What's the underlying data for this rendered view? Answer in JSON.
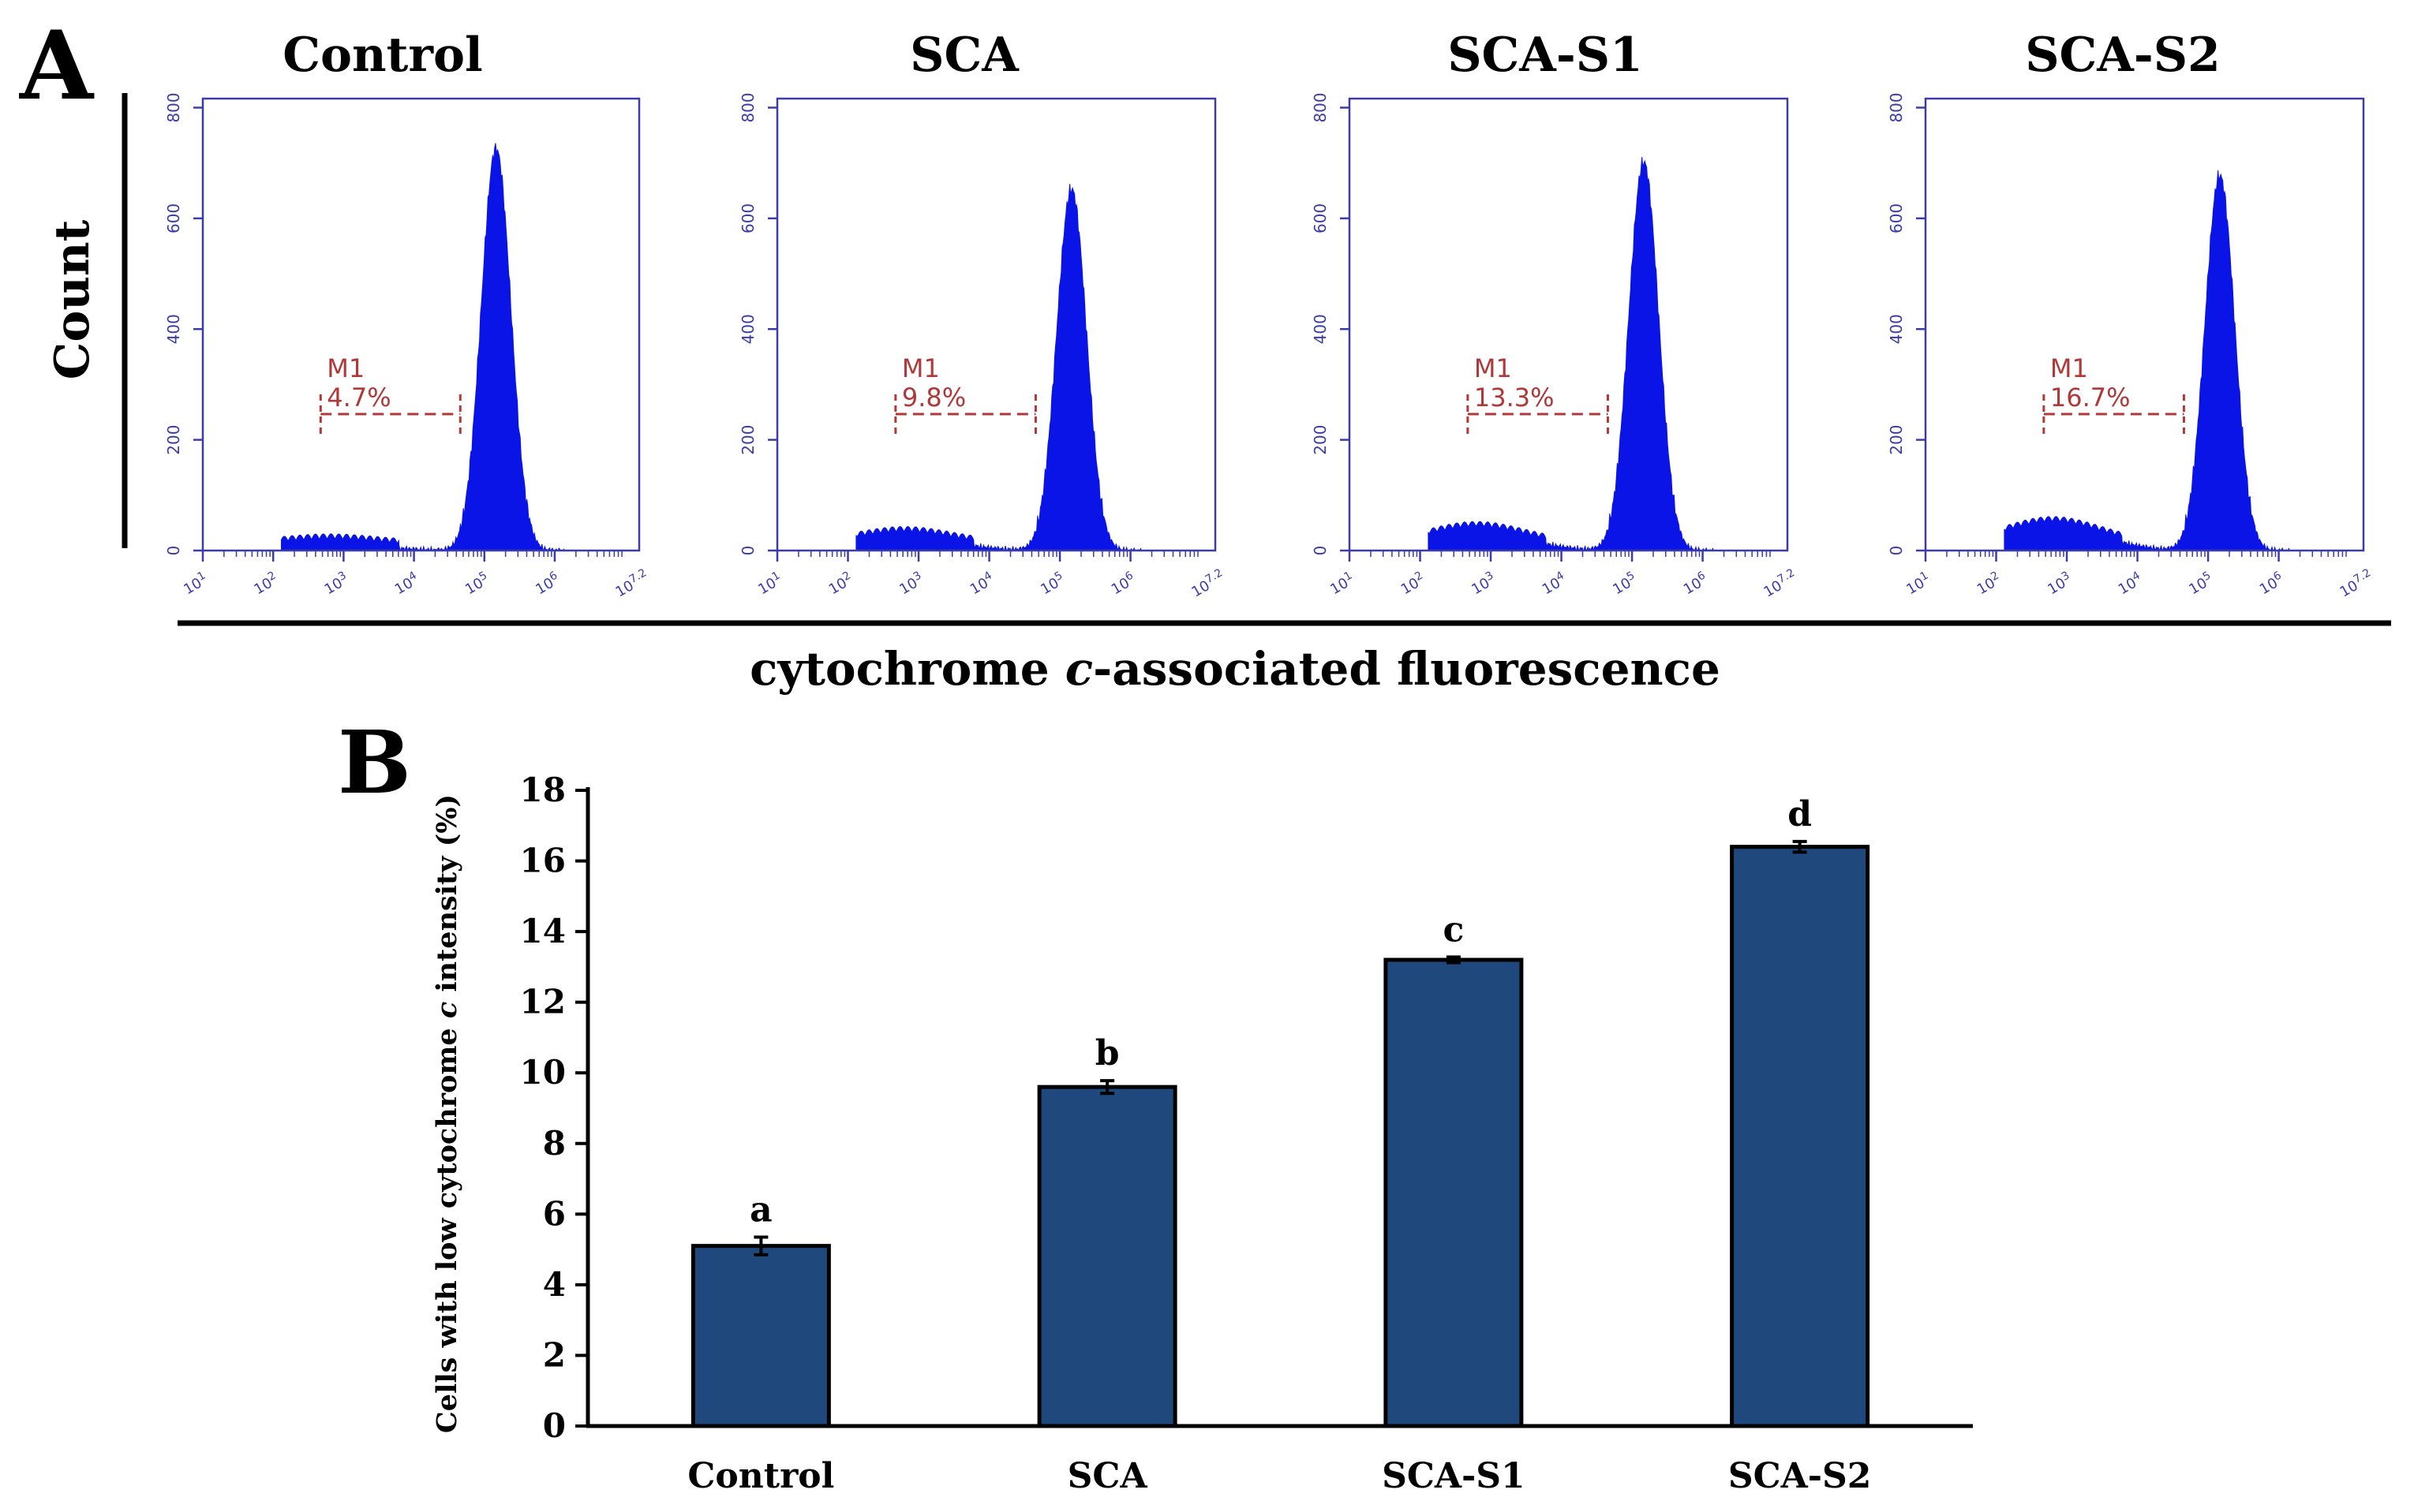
{
  "panel_a": {
    "label": "A",
    "y_axis_label": "Count",
    "x_axis_label_pre": "cytochrome ",
    "x_axis_label_italic": "c",
    "x_axis_label_post": "-associated fluorescence",
    "histograms": [
      {
        "title": "Control",
        "marker": "M1",
        "percent": "4.7%"
      },
      {
        "title": "SCA",
        "marker": "M1",
        "percent": "9.8%"
      },
      {
        "title": "SCA-S1",
        "marker": "M1",
        "percent": "13.3%"
      },
      {
        "title": "SCA-S2",
        "marker": "M1",
        "percent": "16.7%"
      }
    ],
    "y_ticks": [
      "0",
      "200",
      "400",
      "600",
      "800"
    ],
    "x_ticks": [
      "10^1",
      "10^2",
      "10^3",
      "10^4",
      "10^5",
      "10^6",
      "10^7.2"
    ],
    "colors": {
      "fill": "#0a14e6",
      "axis": "#3c3ca8",
      "gate": "#b03838"
    }
  },
  "chart_data": {
    "type": "bar",
    "panel_label": "B",
    "categories": [
      "Control",
      "SCA",
      "SCA-S1",
      "SCA-S2"
    ],
    "values": [
      5.1,
      9.6,
      13.2,
      16.4
    ],
    "errors": [
      0.25,
      0.18,
      0.08,
      0.15
    ],
    "significance_letters": [
      "a",
      "b",
      "c",
      "d"
    ],
    "ylabel_pre": "Cells with low cytochrome ",
    "ylabel_italic": "c",
    "ylabel_post": " intensity (%)",
    "ylim": [
      0,
      18
    ],
    "yticks": [
      0,
      2,
      4,
      6,
      8,
      10,
      12,
      14,
      16,
      18
    ],
    "bar_color": "#1f497d"
  }
}
